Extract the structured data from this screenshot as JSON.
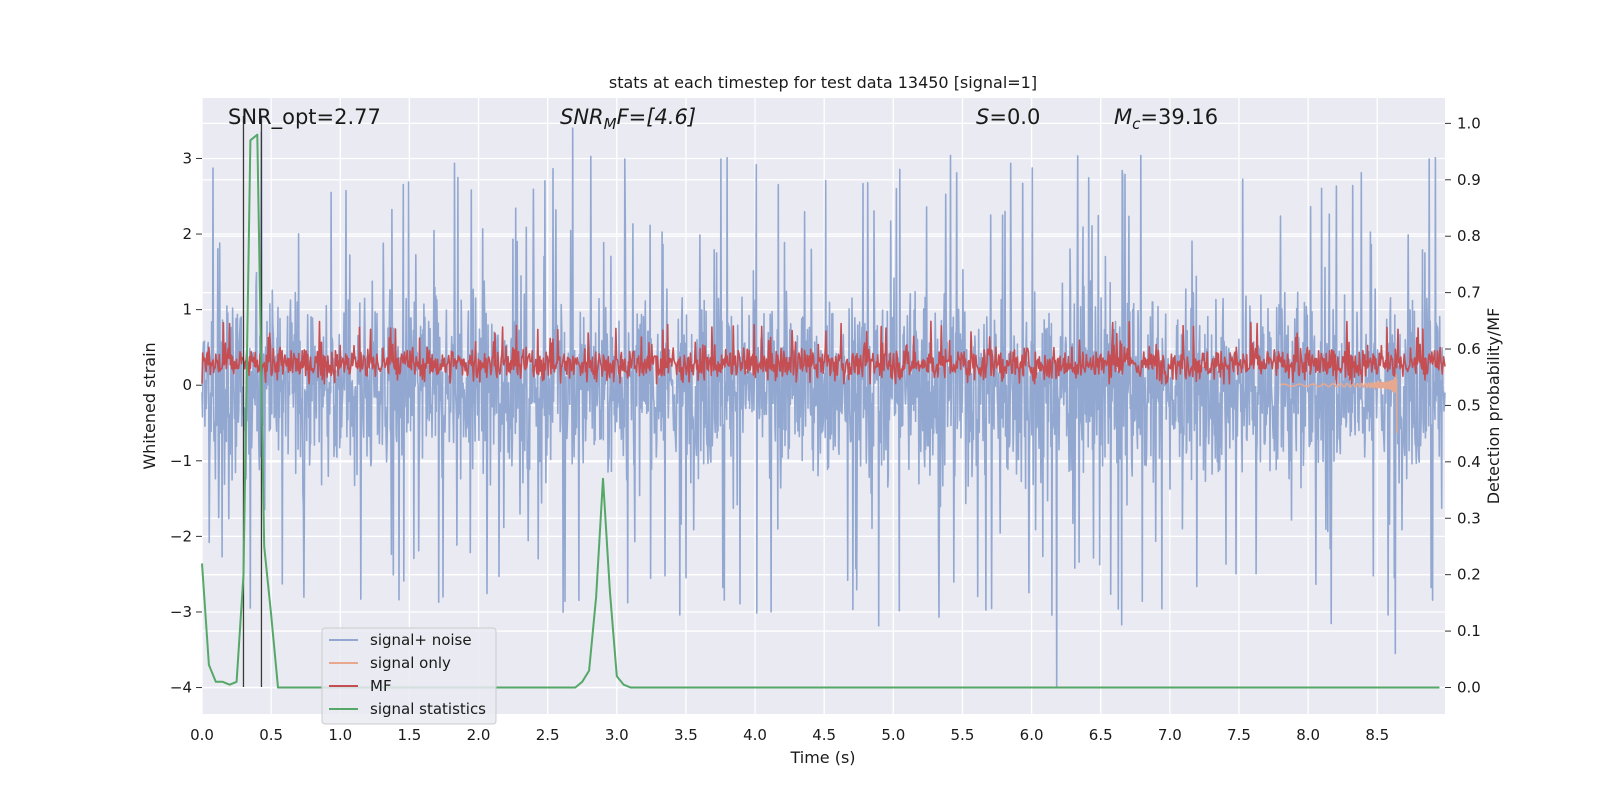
{
  "chart_data": {
    "type": "line",
    "title": "stats at each timestep for test data 13450 [signal=1]",
    "xlabel": "Time (s)",
    "ylabel": "Whitened strain",
    "ylabel_right": "Detection probability/MF",
    "xlim": [
      0.0,
      8.99
    ],
    "ylim": [
      -4.35,
      3.8
    ],
    "ylim_right": [
      -0.047,
      1.045
    ],
    "x_ticks": [
      "0.0",
      "0.5",
      "1.0",
      "1.5",
      "2.0",
      "2.5",
      "3.0",
      "3.5",
      "4.0",
      "4.5",
      "5.0",
      "5.5",
      "6.0",
      "6.5",
      "7.0",
      "7.5",
      "8.0",
      "8.5"
    ],
    "y_ticks": [
      "3",
      "2",
      "1",
      "0",
      "−1",
      "−2",
      "−3",
      "−4"
    ],
    "y_ticks_right": [
      "1.0",
      "0.9",
      "0.8",
      "0.7",
      "0.6",
      "0.5",
      "0.4",
      "0.3",
      "0.2",
      "0.1",
      "0.0"
    ],
    "grid": true,
    "legend_position": "lower-left",
    "annotations": {
      "snr_opt": "SNR_opt=2.77",
      "snr_mf_label": "SNR",
      "snr_mf_sub": "M",
      "snr_mf_rest": "F=[4.6]",
      "s_label": "S",
      "s_rest": "=0.0",
      "mc_label": "M",
      "mc_sub": "c",
      "mc_rest": "=39.16"
    },
    "vertical_lines_x": [
      0.3,
      0.43
    ],
    "series": [
      {
        "name": "signal+ noise",
        "axis": "left",
        "color": "#92a8d1",
        "noise_std": 0.8,
        "positive_peak_range": [
          1.7,
          3.05
        ],
        "negative_peak_range": [
          -1.7,
          -3.2
        ],
        "extremes": [
          {
            "x": 0.43,
            "y": 3.35
          },
          {
            "x": 2.68,
            "y": 3.4
          },
          {
            "x": 6.18,
            "y": -4.0
          },
          {
            "x": 8.63,
            "y": -3.55
          }
        ]
      },
      {
        "name": "signal only",
        "axis": "left",
        "color": "#e8a88f",
        "chirp_start": 7.8,
        "merger_time": 8.64,
        "merger_amplitude": -0.62
      },
      {
        "name": "MF",
        "axis": "left",
        "color": "#c44e52",
        "baseline": 0.28,
        "range": [
          0.02,
          0.85
        ]
      },
      {
        "name": "signal statistics",
        "axis": "right",
        "color": "#55a868",
        "x": [
          0.0,
          0.05,
          0.1,
          0.15,
          0.2,
          0.25,
          0.3,
          0.35,
          0.4,
          0.45,
          0.5,
          0.55,
          0.6,
          1.0,
          2.0,
          2.5,
          2.7,
          2.75,
          2.8,
          2.85,
          2.9,
          2.95,
          3.0,
          3.05,
          3.1,
          3.5,
          4.0,
          5.0,
          6.0,
          7.0,
          8.0,
          8.95
        ],
        "y": [
          0.22,
          0.04,
          0.01,
          0.01,
          0.005,
          0.01,
          0.2,
          0.97,
          0.98,
          0.25,
          0.13,
          0.0,
          0.0,
          0.0,
          0.0,
          0.0,
          0.0,
          0.01,
          0.03,
          0.16,
          0.37,
          0.17,
          0.02,
          0.005,
          0.0,
          0.0,
          0.0,
          0.0,
          0.0,
          0.0,
          0.0,
          0.0
        ]
      }
    ]
  }
}
